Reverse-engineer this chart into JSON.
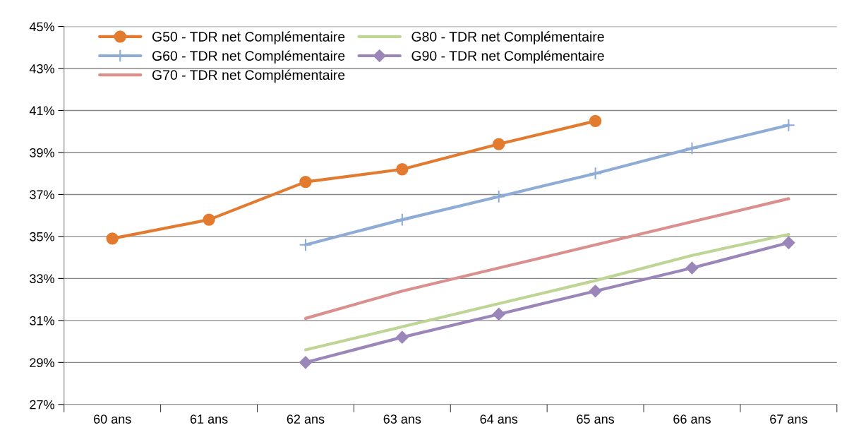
{
  "chart_data": {
    "type": "line",
    "categories": [
      "60 ans",
      "61 ans",
      "62 ans",
      "63 ans",
      "64 ans",
      "65 ans",
      "66 ans",
      "67 ans"
    ],
    "ylim": [
      27,
      45
    ],
    "yticks": [
      {
        "value": 27,
        "label": "27%"
      },
      {
        "value": 29,
        "label": "29%"
      },
      {
        "value": 31,
        "label": "31%"
      },
      {
        "value": 33,
        "label": "33%"
      },
      {
        "value": 35,
        "label": "35%"
      },
      {
        "value": 37,
        "label": "37%"
      },
      {
        "value": 39,
        "label": "39%"
      },
      {
        "value": 41,
        "label": "41%"
      },
      {
        "value": 43,
        "label": "43%"
      },
      {
        "value": 45,
        "label": "45%"
      }
    ],
    "grid": "y",
    "legend": "top left",
    "series": [
      {
        "name": "G50 - TDR net Complémentaire",
        "color": "#e27b2f",
        "marker": "circle",
        "values": [
          34.9,
          35.8,
          37.6,
          38.2,
          39.4,
          40.5,
          null,
          null
        ]
      },
      {
        "name": "G60 - TDR net Complémentaire",
        "color": "#8eacd6",
        "marker": "cross",
        "values": [
          null,
          null,
          34.6,
          35.8,
          36.9,
          38.0,
          39.2,
          40.3
        ]
      },
      {
        "name": "G70 - TDR net Complémentaire",
        "color": "#d9908e",
        "marker": "none",
        "values": [
          null,
          null,
          31.1,
          32.4,
          33.5,
          34.6,
          35.7,
          36.8
        ]
      },
      {
        "name": "G80 - TDR net Complémentaire",
        "color": "#bfd595",
        "marker": "none",
        "values": [
          null,
          null,
          29.6,
          30.7,
          31.8,
          32.9,
          34.1,
          35.1
        ]
      },
      {
        "name": "G90 - TDR net Complémentaire",
        "color": "#9a86b8",
        "marker": "diamond",
        "values": [
          null,
          null,
          29.0,
          30.2,
          31.3,
          32.4,
          33.5,
          34.7
        ]
      }
    ]
  }
}
